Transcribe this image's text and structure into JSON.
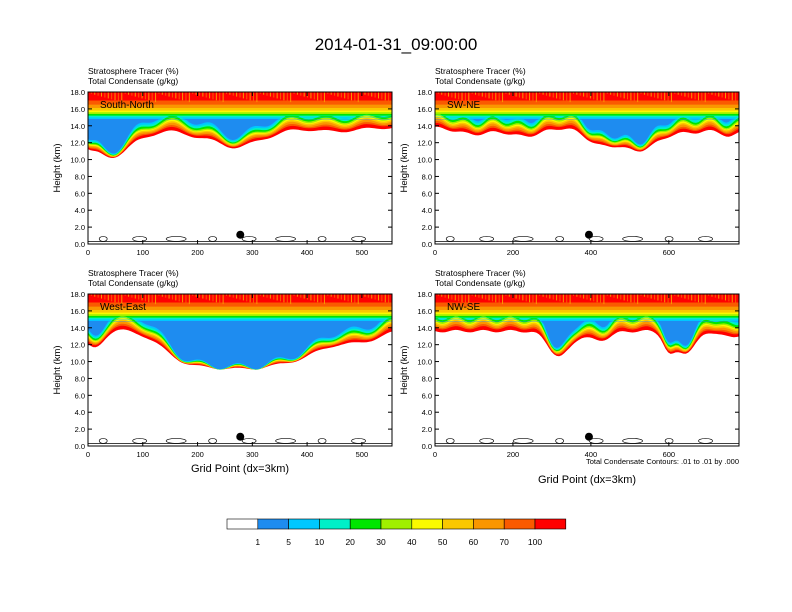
{
  "title": "2014-01-31_09:00:00",
  "panel_header": {
    "line1": "Stratosphere Tracer   (%)",
    "line2": "Total Condensate   (g/kg)"
  },
  "ylabel": "Height (km)",
  "xlabel": "Grid Point (dx=3km)",
  "contour_note": "Total Condensate Contours: .01 to .01 by .000",
  "colors": {
    "levels": [
      "#ffffff",
      "#1e8cf0",
      "#00c8ff",
      "#00f0c8",
      "#00e600",
      "#a0f000",
      "#fafa00",
      "#fac800",
      "#fa9600",
      "#fa5a00",
      "#ff0000"
    ],
    "label_text": "#ffffff",
    "contour": "#000000"
  },
  "chart_data": [
    {
      "type": "heatmap",
      "label": "South-North",
      "xlim": [
        0,
        555
      ],
      "ylim": [
        0,
        18
      ],
      "xticks": [
        "0",
        "100",
        "200",
        "300",
        "400",
        "500"
      ],
      "xtick_values": [
        0,
        100,
        200,
        300,
        400,
        500
      ],
      "yticks": [
        "0.0",
        "2.0",
        "4.0",
        "6.0",
        "8.0",
        "10.0",
        "12.0",
        "14.0",
        "16.0",
        "18.0"
      ],
      "dot": [
        278,
        1.1
      ],
      "base_height_km": 15.2,
      "dips": [
        [
          0,
          15,
          14.2
        ],
        [
          30,
          45,
          12.0
        ],
        [
          60,
          40,
          13.4
        ],
        [
          110,
          30,
          14.4
        ],
        [
          200,
          50,
          14.0
        ],
        [
          270,
          45,
          12.5
        ],
        [
          330,
          40,
          14.2
        ],
        [
          450,
          60,
          14.6
        ]
      ]
    },
    {
      "type": "heatmap",
      "label": "SW-NE",
      "xlim": [
        0,
        780
      ],
      "ylim": [
        0,
        18
      ],
      "xticks": [
        "0",
        "200",
        "400",
        "600"
      ],
      "xtick_values": [
        0,
        200,
        400,
        600
      ],
      "yticks": [
        "0.0",
        "2.0",
        "4.0",
        "6.0",
        "8.0",
        "10.0",
        "12.0",
        "14.0",
        "16.0",
        "18.0"
      ],
      "dot": [
        395,
        1.1
      ],
      "base_height_km": 15.2,
      "dips": [
        [
          100,
          60,
          14.2
        ],
        [
          230,
          60,
          13.9
        ],
        [
          420,
          50,
          13.0
        ],
        [
          520,
          70,
          11.8
        ],
        [
          660,
          80,
          14.5
        ],
        [
          760,
          30,
          14.0
        ]
      ]
    },
    {
      "type": "heatmap",
      "label": "West-East",
      "xlim": [
        0,
        555
      ],
      "ylim": [
        0,
        18
      ],
      "xticks": [
        "0",
        "100",
        "200",
        "300",
        "400",
        "500"
      ],
      "xtick_values": [
        0,
        100,
        200,
        300,
        400,
        500
      ],
      "yticks": [
        "0.0",
        "2.0",
        "4.0",
        "6.0",
        "8.0",
        "10.0",
        "12.0",
        "14.0",
        "16.0",
        "18.0"
      ],
      "dot": [
        278,
        1.1
      ],
      "base_height_km": 15.2,
      "dips": [
        [
          10,
          25,
          12.5
        ],
        [
          170,
          60,
          12.3
        ],
        [
          240,
          80,
          11.5
        ],
        [
          320,
          80,
          11.6
        ],
        [
          400,
          70,
          12.6
        ],
        [
          500,
          50,
          13.6
        ]
      ]
    },
    {
      "type": "heatmap",
      "label": "NW-SE",
      "xlim": [
        0,
        780
      ],
      "ylim": [
        0,
        18
      ],
      "xticks": [
        "0",
        "200",
        "400",
        "600"
      ],
      "xtick_values": [
        0,
        200,
        400,
        600
      ],
      "yticks": [
        "0.0",
        "2.0",
        "4.0",
        "6.0",
        "8.0",
        "10.0",
        "12.0",
        "14.0",
        "16.0",
        "18.0"
      ],
      "dot": [
        395,
        1.1
      ],
      "base_height_km": 15.0,
      "dips": [
        [
          320,
          40,
          11.2
        ],
        [
          420,
          40,
          13.6
        ],
        [
          600,
          20,
          12.8
        ],
        [
          640,
          40,
          11.8
        ],
        [
          760,
          30,
          14.0
        ]
      ]
    }
  ],
  "colorbar": {
    "labels": [
      "1",
      "5",
      "10",
      "20",
      "30",
      "40",
      "50",
      "60",
      "70",
      "100"
    ]
  }
}
